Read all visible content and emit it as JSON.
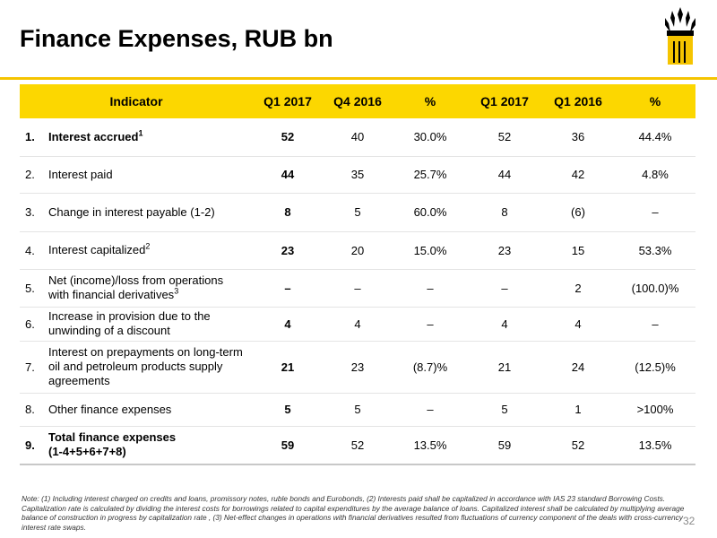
{
  "title": "Finance Expenses, RUB bn",
  "colors": {
    "accent": "#fcd700",
    "rule": "#f5c400"
  },
  "logo": {
    "icon": "rosneft-logo-icon"
  },
  "table": {
    "headers": [
      "Indicator",
      "Q1 2017",
      "Q4 2016",
      "%",
      "Q1 2017",
      "Q1 2016",
      "%"
    ],
    "rows": [
      {
        "num": "1.",
        "label": "Interest accrued",
        "sup": "1",
        "bold_label": true,
        "cells": [
          "52",
          "40",
          "30.0%",
          "52",
          "36",
          "44.4%"
        ]
      },
      {
        "num": "2.",
        "label": "Interest paid",
        "sup": "",
        "cells": [
          "44",
          "35",
          "25.7%",
          "44",
          "42",
          "4.8%"
        ]
      },
      {
        "num": "3.",
        "label": "Change in interest payable (1-2)",
        "sup": "",
        "cells": [
          "8",
          "5",
          "60.0%",
          "8",
          "(6)",
          "–"
        ]
      },
      {
        "num": "4.",
        "label": "Interest capitalized",
        "sup": "2",
        "cells": [
          "23",
          "20",
          "15.0%",
          "23",
          "15",
          "53.3%"
        ]
      },
      {
        "num": "5.",
        "label_lines": [
          "Net (income)/loss from operations",
          "with financial derivatives"
        ],
        "sup": "3",
        "cells": [
          "–",
          "–",
          "–",
          "–",
          "2",
          "(100.0)%"
        ]
      },
      {
        "num": "6.",
        "label_lines": [
          "Increase in provision due to the",
          "unwinding of a discount"
        ],
        "sup": "",
        "cells": [
          "4",
          "4",
          "–",
          "4",
          "4",
          "–"
        ]
      },
      {
        "num": "7.",
        "label_lines": [
          "Interest on prepayments on long-term",
          "oil and petroleum products supply",
          "agreements"
        ],
        "sup": "",
        "cells": [
          "21",
          "23",
          "(8.7)%",
          "21",
          "24",
          "(12.5)%"
        ]
      },
      {
        "num": "8.",
        "label": "Other finance expenses",
        "sup": "",
        "cells": [
          "5",
          "5",
          "–",
          "5",
          "1",
          ">100%"
        ]
      },
      {
        "num": "9.",
        "label_lines": [
          "Total finance expenses",
          "(1-4+5+6+7+8)"
        ],
        "sup": "",
        "bold_label": true,
        "cells": [
          "59",
          "52",
          "13.5%",
          "59",
          "52",
          "13.5%"
        ]
      }
    ]
  },
  "note": "Note: (1) Including interest charged on credits and loans, promissory notes, ruble bonds and Eurobonds, (2) Interests paid shall be capitalized in accordance with IAS 23 standard Borrowing Costs. Capitalization rate is calculated by dividing the interest costs for borrowings related to capital expenditures by the average balance of loans. Capitalized interest shall be calculated by multiplying average balance of construction in progress by capitalization rate , (3) Net-effect changes in operations with financial derivatives resulted from fluctuations of currency component of the deals with cross-currency interest rate swaps.",
  "page_number": "32"
}
